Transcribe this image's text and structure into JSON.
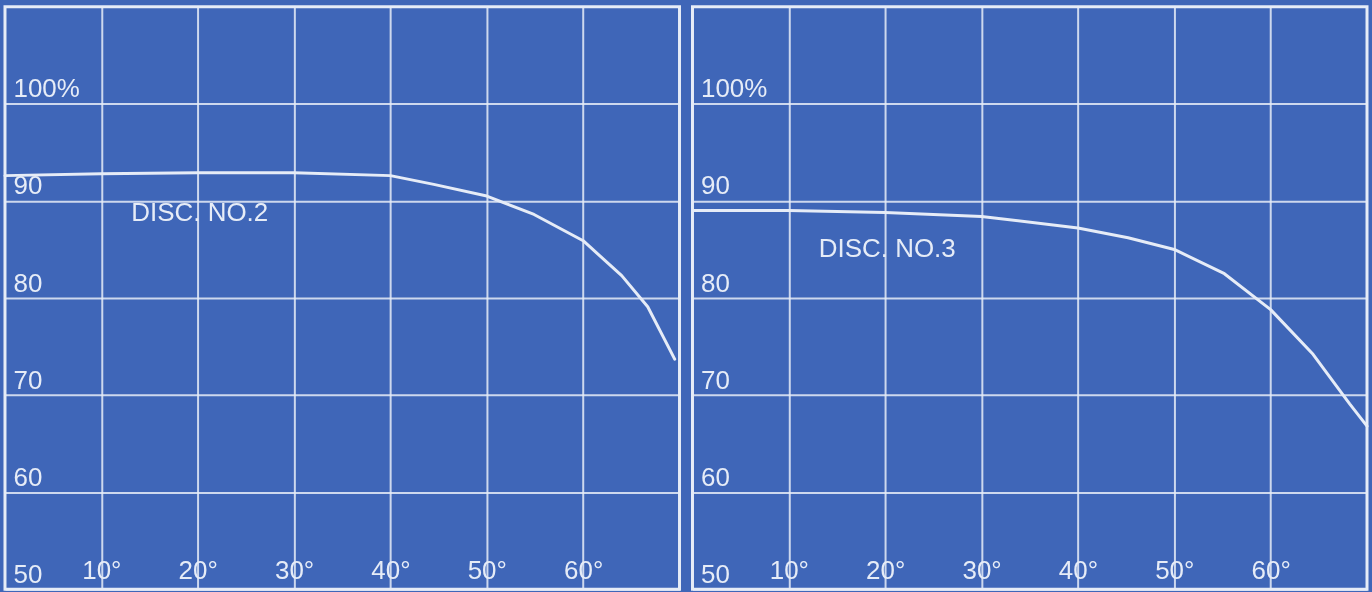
{
  "chart_data": [
    {
      "type": "line",
      "x": [
        0,
        10,
        20,
        30,
        40,
        44.5,
        50,
        54.9,
        60,
        64,
        66.7,
        69.5
      ],
      "xlim": [
        0,
        70
      ],
      "ylim": [
        50,
        110
      ],
      "xticks": [
        {
          "value": 10,
          "label": "10°"
        },
        {
          "value": 20,
          "label": "20°"
        },
        {
          "value": 30,
          "label": "30°"
        },
        {
          "value": 40,
          "label": "40°"
        },
        {
          "value": 50,
          "label": "50°"
        },
        {
          "value": 60,
          "label": "60°"
        }
      ],
      "yticks": [
        50,
        60,
        70,
        80,
        90,
        {
          "value": 100,
          "label": "100%"
        }
      ],
      "grid": true,
      "series": [
        {
          "name": "DISC. NO.2",
          "color": "#e6ecf7",
          "values": [
            92.6,
            92.8,
            92.9,
            92.9,
            92.6,
            91.7,
            90.5,
            88.6,
            85.9,
            82.3,
            79.1,
            73.7
          ]
        }
      ]
    },
    {
      "type": "line",
      "x": [
        0,
        10,
        20,
        30,
        40,
        45.2,
        50,
        55.2,
        60,
        64.4,
        68.2,
        70
      ],
      "xlim": [
        0,
        70
      ],
      "ylim": [
        50,
        110
      ],
      "xticks": [
        {
          "value": 10,
          "label": "10°"
        },
        {
          "value": 20,
          "label": "20°"
        },
        {
          "value": 30,
          "label": "30°"
        },
        {
          "value": 40,
          "label": "40°"
        },
        {
          "value": 50,
          "label": "50°"
        },
        {
          "value": 60,
          "label": "60°"
        }
      ],
      "yticks": [
        50,
        60,
        70,
        80,
        90,
        {
          "value": 100,
          "label": "100%"
        }
      ],
      "grid": true,
      "series": [
        {
          "name": "DISC. NO.3",
          "color": "#e6ecf7",
          "values": [
            89.0,
            89.0,
            88.8,
            88.4,
            87.2,
            86.2,
            85.0,
            82.5,
            78.8,
            74.2,
            69.1,
            66.8
          ]
        }
      ]
    }
  ]
}
